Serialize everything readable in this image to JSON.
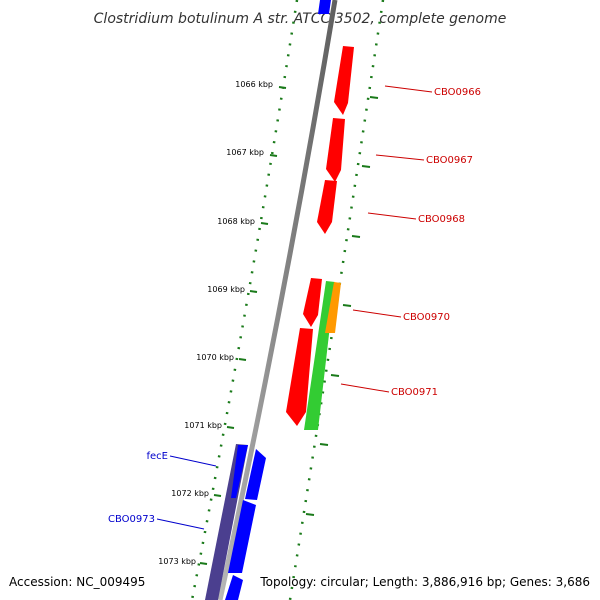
{
  "title": "Clostridium botulinum A str. ATCC 3502, complete genome",
  "footer": {
    "accession": "Accession: NC_009495",
    "topology": "Topology: circular; Length: 3,886,916 bp; Genes: 3,686"
  },
  "ticks": [
    "1066 kbp",
    "1067 kbp",
    "1068 kbp",
    "1069 kbp",
    "1070 kbp",
    "1071 kbp",
    "1072 kbp",
    "1073 kbp"
  ],
  "gene_labels": {
    "cbo0966": "CBO0966",
    "cbo0967": "CBO0967",
    "cbo0968": "CBO0968",
    "cbo0970": "CBO0970",
    "cbo0971": "CBO0971",
    "fece": "fecE",
    "cbo0973": "CBO0973"
  },
  "colors": {
    "forward_gene": "#ff0000",
    "reverse_gene": "#0000ff",
    "green_feature": "#33cc33",
    "orange_feature": "#ff9900",
    "purple_feature": "#4b3f8f",
    "backbone": "#808080",
    "tick": "#1a7a1a",
    "forward_label": "#cc0000",
    "reverse_label": "#0000cc"
  }
}
